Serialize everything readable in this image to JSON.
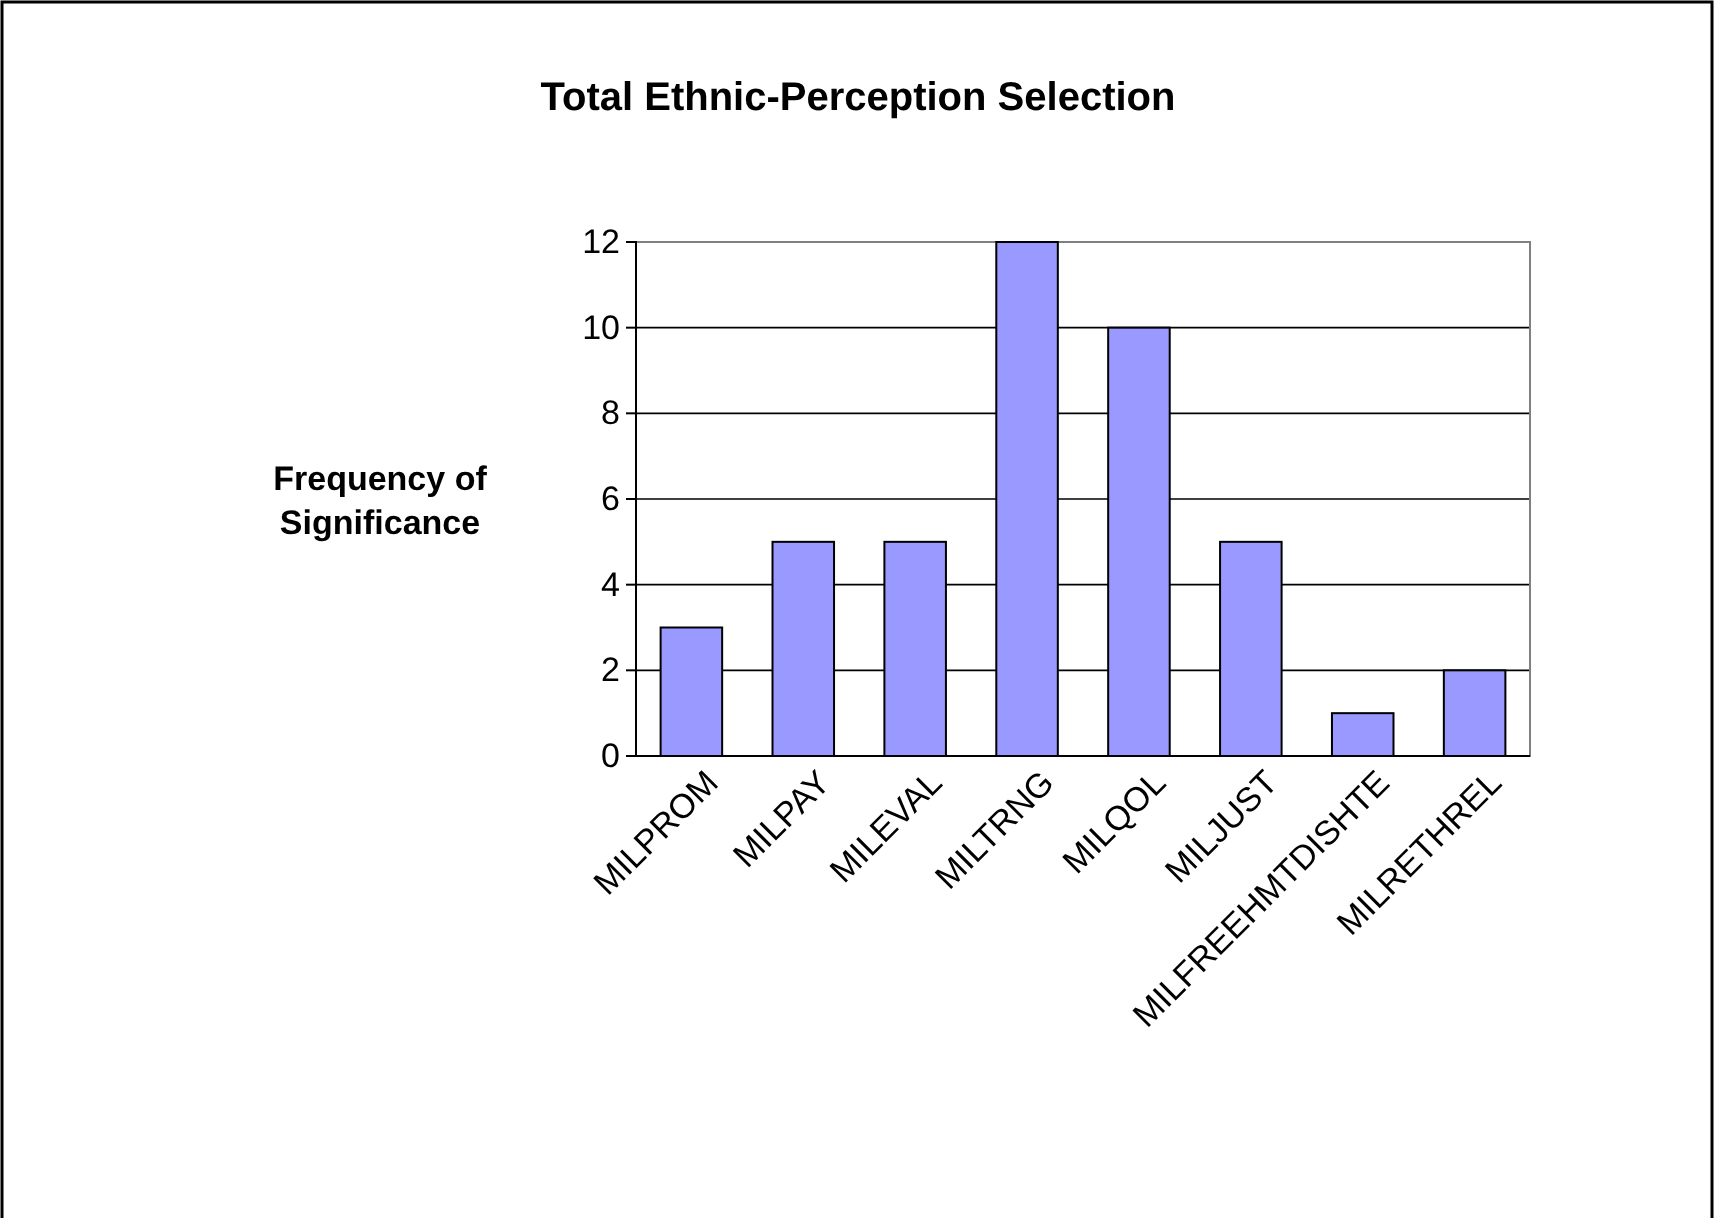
{
  "chart_data": {
    "type": "bar",
    "title": "Total Ethnic-Perception Selection",
    "ylabel": "Frequency of Significance",
    "categories": [
      "MILPROM",
      "MILPAY",
      "MILEVAL",
      "MILTRNG",
      "MILQOL",
      "MILJUST",
      "MILFREEHMTDISHTE",
      "MILRETHREL"
    ],
    "values": [
      3,
      5,
      5,
      12,
      10,
      5,
      1,
      2
    ],
    "color": "#9999ff",
    "ylim": [
      0,
      12
    ],
    "yticks": [
      0,
      2,
      4,
      6,
      8,
      10,
      12
    ],
    "grid": "y"
  }
}
